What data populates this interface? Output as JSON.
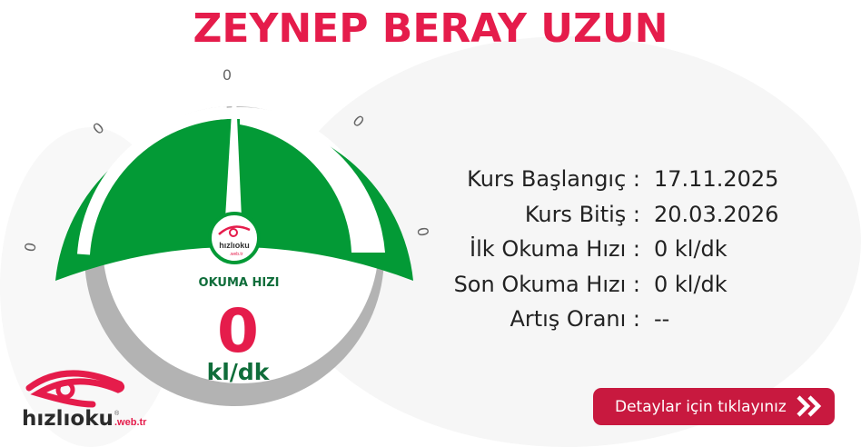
{
  "title": "ZEYNEP BERAY UZUN",
  "gauge": {
    "value": 0,
    "label": "OKUMA HIZI",
    "value_text": "0",
    "unit": "kl/dk",
    "tick_labels": [
      "0",
      "0",
      "0",
      "0",
      "0"
    ],
    "brand_small": "hızlıoku",
    "brand_small_sub": ".web.tr",
    "colors": {
      "green": "#039a36",
      "dark_green": "#0f6d3a",
      "red": "#e51c4b",
      "gray": "#b3b3b3"
    }
  },
  "info": [
    {
      "label": "Kurs Başlangıç :",
      "value": "17.11.2025"
    },
    {
      "label": "Kurs Bitiş :",
      "value": "20.03.2026"
    },
    {
      "label": "İlk Okuma Hızı :",
      "value": "0 kl/dk"
    },
    {
      "label": "Son Okuma Hızı :",
      "value": "0 kl/dk"
    },
    {
      "label": "Artış Oranı :",
      "value": "--"
    }
  ],
  "detail_button": {
    "label": "Detaylar için tıklayınız",
    "icon": "double-chevron-right-icon",
    "color": "#c8193f"
  },
  "logo": {
    "text": "hızlıoku",
    "sub": ".web.tr",
    "mark": "®"
  }
}
